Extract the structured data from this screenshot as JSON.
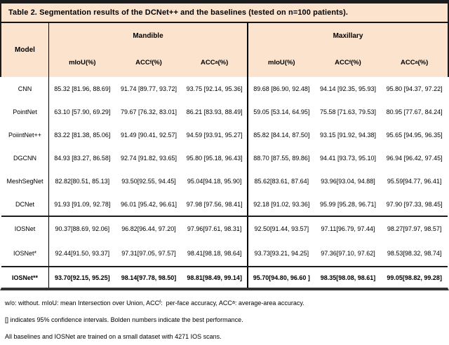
{
  "title": "Table 2. Segmentation results of the DCNet++ and the baselines (tested on n=100 patients).",
  "colors": {
    "table_header_bg": "#fbe3ce",
    "body_bg": "#ffffff",
    "border": "#1c1c1c"
  },
  "table": {
    "model_header": "Model",
    "groups": [
      {
        "label": "Mandible"
      },
      {
        "label": "Maxillary"
      }
    ],
    "metrics": [
      {
        "base": "mIoU",
        "sub": "",
        "pct": "(%)"
      },
      {
        "base": "ACC",
        "sub": "f",
        "pct": "(%)"
      },
      {
        "base": "ACC",
        "sub": "a",
        "pct": "(%)"
      }
    ],
    "rows": [
      {
        "model": "CNN",
        "cells": [
          "85.32 [81.96, 88.69]",
          "91.74 [89.77, 93.72]",
          "93.75 [92.14, 95.36]",
          "89.68 [86.90, 92.48]",
          "94.14 [92.35, 95.93]",
          "95.80 [94.37, 97.22]"
        ]
      },
      {
        "model": "PointNet",
        "cells": [
          "63.10 [57.90, 69.29]",
          "79.67 [76.32, 83.01]",
          "86.21 [83.93, 88.49]",
          "59.05 [53.14, 64.95]",
          "75.58 [71.63, 79.53]",
          "80.95 [77.67, 84.24]"
        ]
      },
      {
        "model": "PoiintNet++",
        "cells": [
          "83.22 [81.38, 85.06]",
          "91.49 [90.41, 92.57]",
          "94.59 [93.91, 95.27]",
          "85.82 [84.14, 87.50]",
          "93.15 [91.92, 94.38]",
          "95.65 [94.95, 96.35]"
        ]
      },
      {
        "model": "DGCNN",
        "cells": [
          "84.93 [83.27, 86.58]",
          "92.74 [91.82, 93.65]",
          "95.80 [95.18, 96.43]",
          "88.70 [87.55, 89.86]",
          "94.41 [93.73, 95.10]",
          "96.94 [96.42, 97.45]"
        ]
      },
      {
        "model": "MeshSegNet",
        "cells": [
          "82.82[80.51, 85.13]",
          "93.50[92.55, 94.45]",
          "95.04[94.18, 95.90]",
          "85.62[83.61, 87.64]",
          "93.96[93.04, 94.88]",
          "95.59[94.77, 96.41]"
        ]
      },
      {
        "model": "DCNet",
        "cells": [
          "91.93 [91.09, 92.78]",
          "96.01 [95.42, 96.61]",
          "97.98 [97.56, 98.41]",
          "92.18 [91.02, 93.36]",
          "95.99 [95.28, 96.71]",
          "97.90 [97.33, 98.45]"
        ]
      },
      {
        "model": "IOSNet",
        "cells": [
          "90.37[88.69, 92.06]",
          "96.82[96.44, 97.20]",
          "97.96[97.61, 98.31]",
          "92.50[91.44, 93.57]",
          "97.11[96.79, 97.44]",
          "98.27[97.97, 98.57]"
        ]
      },
      {
        "model": "IOSNet*",
        "cells": [
          "92.44[91.50, 93.37]",
          "97.31[97.05, 97.57]",
          "98.41[98.18, 98.64]",
          "93.73[93.21, 94.25]",
          "97.36[97.10, 97.62]",
          "98.53[98.32, 98.74]"
        ]
      },
      {
        "model": "IOSNet**",
        "cells": [
          "93.70[92.15, 95.25]",
          "98.14[97.78, 98.50]",
          "98.81[98.49, 99.14]",
          "95.70[94.80, 96.60 ]",
          "98.35[98.08, 98.61]",
          "99.05[98.82, 99.28]"
        ]
      }
    ]
  },
  "footnotes": {
    "line1": {
      "p1": "w/o: without. mIoU: mean Intersection over Union, ACC",
      "sub1": "f",
      "p2": ":  per-face accuracy, ACC",
      "sub2": "a",
      "p3": ": average-area accuracy."
    },
    "line2": "[] indicates 95% confidence intervals. Bolden numbers indicate the best performance.",
    "line3": "All baselines and IOSNet are trained on a small dataset with 4271 IOS scans."
  }
}
